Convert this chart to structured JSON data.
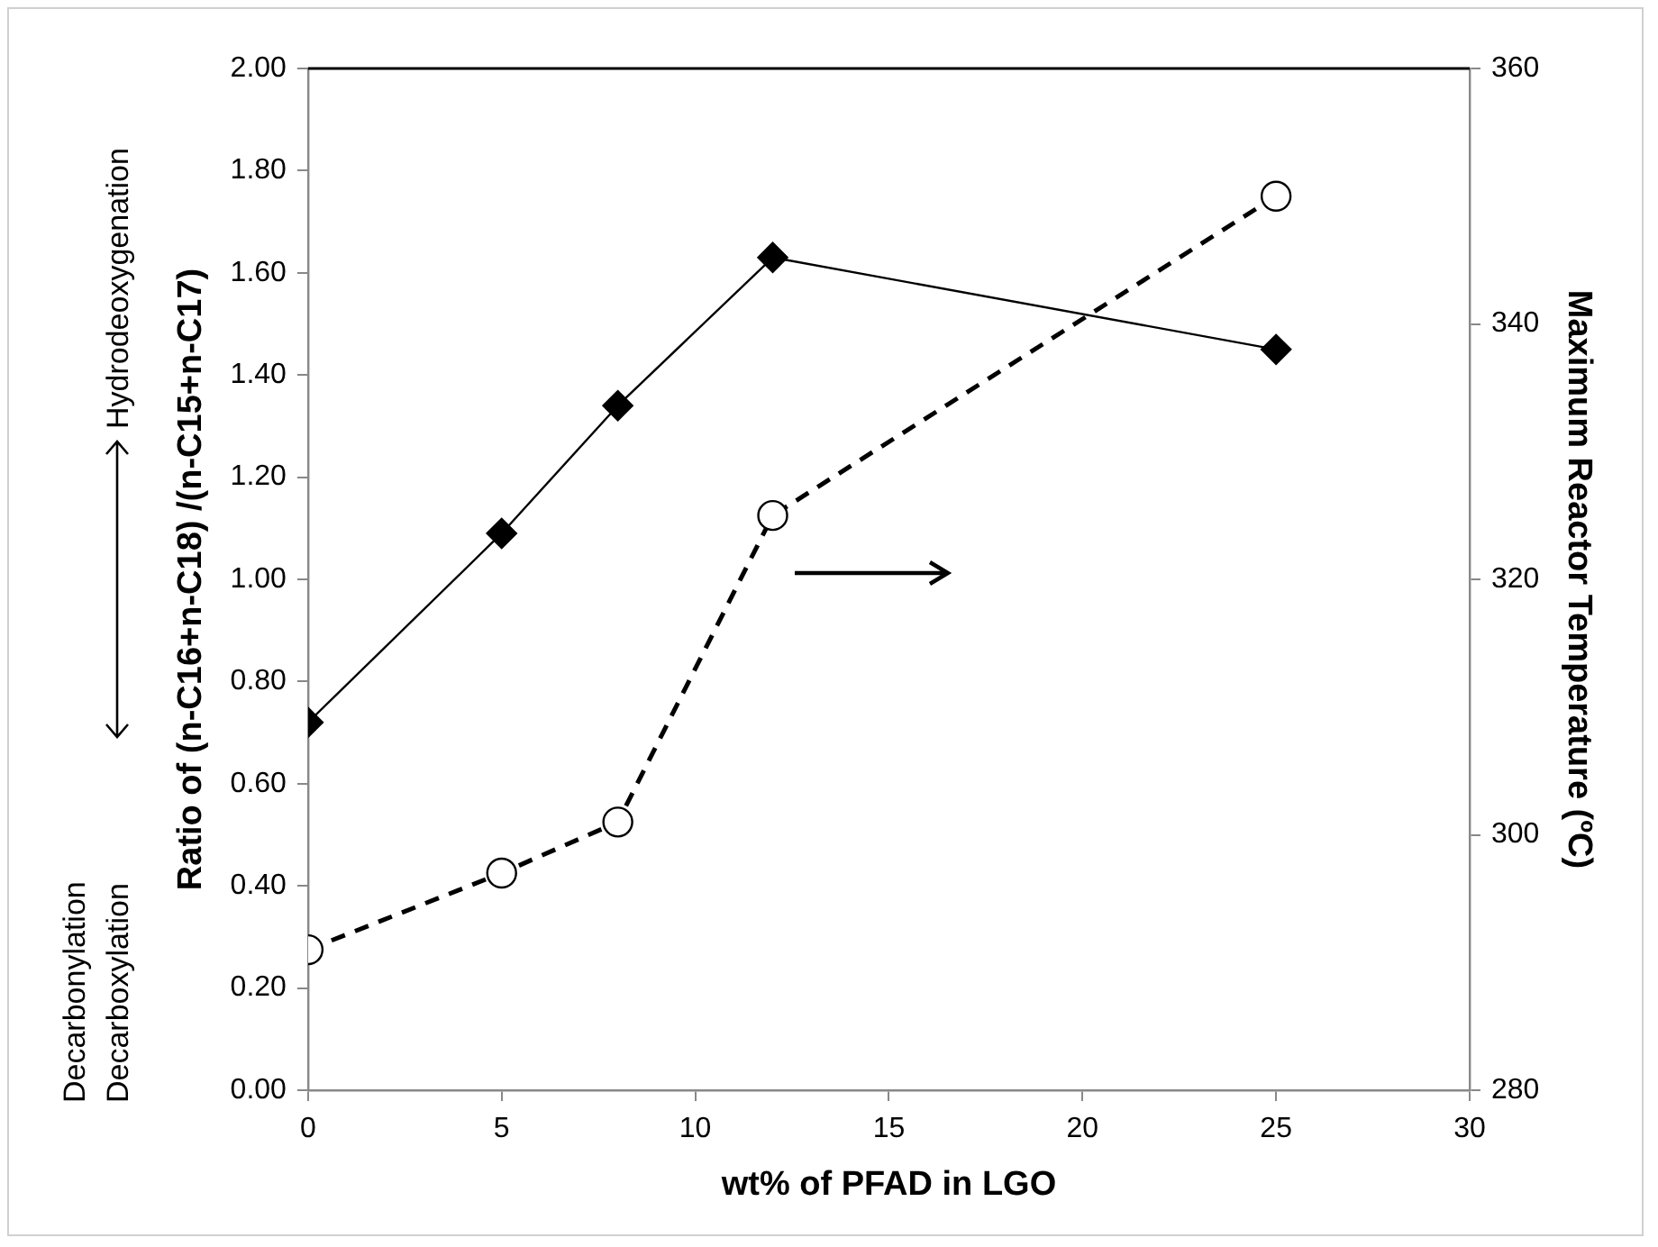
{
  "chart_data": {
    "type": "line",
    "xlabel": "wt% of PFAD in LGO",
    "ylabel": "Ratio of (n-C16+n-C18) /(n-C15+n-C17)",
    "y2label": "Maximum Reactor Temperature (ºC)",
    "annotations": [
      "Hydrodeoxygenation",
      "Decarbonylation",
      "Decarboxylation"
    ],
    "x": [
      0,
      5,
      8,
      12,
      25
    ],
    "series": [
      {
        "color": "#000000",
        "values": [
          0.72,
          1.09,
          1.34,
          1.63,
          1.45
        ],
        "marker": "diamond",
        "line_style": "solid"
      },
      {
        "color": "#000000",
        "values": [
          291,
          297,
          301,
          325,
          350
        ],
        "axis": "y2",
        "marker": "circle",
        "line_style": "dashed"
      }
    ],
    "xlim": [
      0,
      30
    ],
    "xticks": [
      0,
      5,
      10,
      15,
      20,
      25,
      30
    ],
    "ylim": [
      0,
      2
    ],
    "yticks": [
      {
        "value": 0,
        "label": "0.00"
      },
      {
        "value": 0.2,
        "label": "0.20"
      },
      {
        "value": 0.4,
        "label": "0.40"
      },
      {
        "value": 0.6,
        "label": "0.60"
      },
      {
        "value": 0.8,
        "label": "0.80"
      },
      {
        "value": 1,
        "label": "1.00"
      },
      {
        "value": 1.2,
        "label": "1.20"
      },
      {
        "value": 1.4,
        "label": "1.40"
      },
      {
        "value": 1.6,
        "label": "1.60"
      },
      {
        "value": 1.8,
        "label": "1.80"
      },
      {
        "value": 2,
        "label": "2.00"
      }
    ],
    "y2lim": [
      280,
      360
    ],
    "y2ticks": [
      280,
      300,
      320,
      340,
      360
    ],
    "grid": false,
    "legend": false
  }
}
